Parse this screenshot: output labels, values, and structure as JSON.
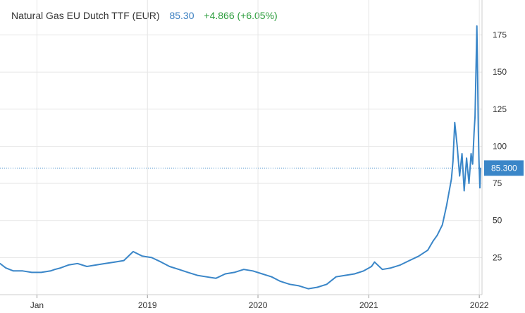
{
  "header": {
    "instrument": "Natural Gas EU Dutch TTF (EUR)",
    "last_price": "85.30",
    "change": "+4.866 (+6.05%)"
  },
  "colors": {
    "line": "#3a86c8",
    "price_color": "#3a7ec0",
    "change_color": "#2e9e3e",
    "grid": "#e6e6e6",
    "badge": "#3a86c8"
  },
  "last_value_badge": "85.300",
  "chart_data": {
    "type": "line",
    "title": "Natural Gas EU Dutch TTF (EUR)",
    "xlabel": "",
    "ylabel": "",
    "y_axis_position": "right",
    "grid": true,
    "ylim": [
      0,
      190
    ],
    "xlim": [
      "2017-09-01",
      "2022-01-10"
    ],
    "y_ticks": [
      25,
      50,
      75,
      100,
      125,
      150,
      175
    ],
    "x_ticks": [
      {
        "date": "2018-01-01",
        "label": "Jan"
      },
      {
        "date": "2019-01-01",
        "label": "2019"
      },
      {
        "date": "2020-01-01",
        "label": "2020"
      },
      {
        "date": "2021-01-01",
        "label": "2021"
      },
      {
        "date": "2022-01-01",
        "label": "2022"
      }
    ],
    "reference_line": {
      "value": 85.3,
      "style": "dotted"
    },
    "series": [
      {
        "x": [
          "2017-09-01",
          "2017-09-20",
          "2017-10-15",
          "2017-11-15",
          "2017-12-15",
          "2018-01-15",
          "2018-02-15",
          "2018-03-01",
          "2018-03-20",
          "2018-04-15",
          "2018-05-15",
          "2018-06-15",
          "2018-07-15",
          "2018-08-15",
          "2018-09-15",
          "2018-10-15",
          "2018-11-15",
          "2018-12-15",
          "2019-01-15",
          "2019-02-15",
          "2019-03-15",
          "2019-04-15",
          "2019-05-15",
          "2019-06-15",
          "2019-07-15",
          "2019-08-15",
          "2019-09-15",
          "2019-10-15",
          "2019-11-15",
          "2019-12-15",
          "2020-01-15",
          "2020-02-15",
          "2020-03-15",
          "2020-04-15",
          "2020-05-15",
          "2020-06-15",
          "2020-07-15",
          "2020-08-15",
          "2020-09-15",
          "2020-10-15",
          "2020-11-15",
          "2020-12-15",
          "2021-01-10",
          "2021-01-20",
          "2021-02-15",
          "2021-03-15",
          "2021-04-15",
          "2021-05-15",
          "2021-06-15",
          "2021-07-15",
          "2021-08-01",
          "2021-08-15",
          "2021-09-01",
          "2021-09-15",
          "2021-10-01",
          "2021-10-06",
          "2021-10-12",
          "2021-10-20",
          "2021-10-28",
          "2021-11-05",
          "2021-11-12",
          "2021-11-20",
          "2021-11-28",
          "2021-12-05",
          "2021-12-10",
          "2021-12-15",
          "2021-12-18",
          "2021-12-21",
          "2021-12-24",
          "2021-12-27",
          "2021-12-29",
          "2021-12-31",
          "2022-01-03",
          "2022-01-05"
        ],
        "values": [
          21,
          18,
          16,
          16,
          15,
          15,
          16,
          17,
          18,
          20,
          21,
          19,
          20,
          21,
          22,
          23,
          29,
          26,
          25,
          22,
          19,
          17,
          15,
          13,
          12,
          11,
          14,
          15,
          17,
          16,
          14,
          12,
          9,
          7,
          6,
          4,
          5,
          7,
          12,
          13,
          14,
          16,
          19,
          22,
          17,
          18,
          20,
          23,
          26,
          30,
          36,
          40,
          47,
          60,
          78,
          90,
          116,
          100,
          80,
          95,
          70,
          92,
          75,
          95,
          88,
          110,
          120,
          150,
          181,
          140,
          110,
          90,
          72,
          85.3
        ]
      }
    ]
  }
}
